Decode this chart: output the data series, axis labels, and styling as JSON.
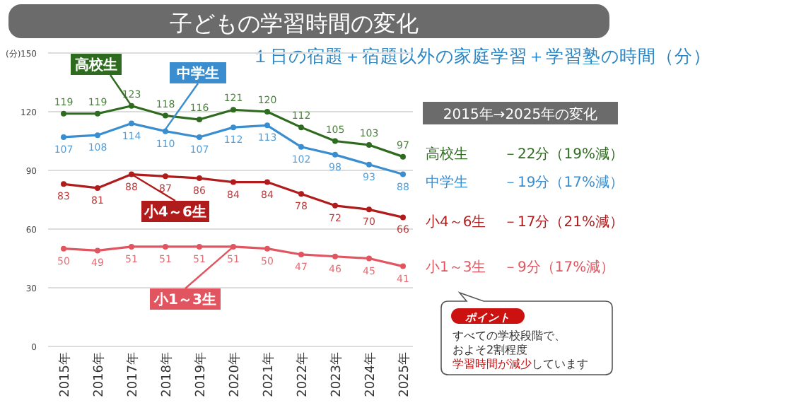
{
  "chart_data": {
    "type": "line",
    "title": "子どもの学習時間の変化",
    "subtitle": "１日の宿題＋宿題以外の家庭学習＋学習塾の時間（分）",
    "ylabel": "(分)",
    "categories": [
      "2015年",
      "2016年",
      "2017年",
      "2018年",
      "2019年",
      "2020年",
      "2021年",
      "2022年",
      "2023年",
      "2024年",
      "2025年"
    ],
    "series": [
      {
        "name": "高校生",
        "color": "#2e6b1f",
        "values": [
          119,
          119,
          123,
          118,
          116,
          121,
          120,
          112,
          105,
          103,
          97
        ]
      },
      {
        "name": "中学生",
        "color": "#3a8ed0",
        "values": [
          107,
          108,
          114,
          110,
          107,
          112,
          113,
          102,
          98,
          93,
          88
        ]
      },
      {
        "name": "小4～6生",
        "color": "#b01c1c",
        "values": [
          83,
          81,
          88,
          87,
          86,
          84,
          84,
          78,
          72,
          70,
          66
        ]
      },
      {
        "name": "小1～3生",
        "color": "#e0555f",
        "values": [
          50,
          49,
          51,
          51,
          51,
          51,
          50,
          47,
          46,
          45,
          41
        ]
      }
    ],
    "ylim": [
      0,
      150
    ],
    "yticks": [
      0,
      30,
      60,
      90,
      120,
      150
    ],
    "grid": "y",
    "marker": "circle",
    "line_style": "solid",
    "data_labels": true,
    "annotations": [
      "2015年→2025年の変化",
      "－22分（19%減）",
      "－19分（17%減）",
      "－17分（21%減）",
      "－9分（17%減）",
      "ポイント",
      "すべての学校段階で、",
      "およそ2割程度",
      "学習時間が減少",
      "しています"
    ]
  }
}
